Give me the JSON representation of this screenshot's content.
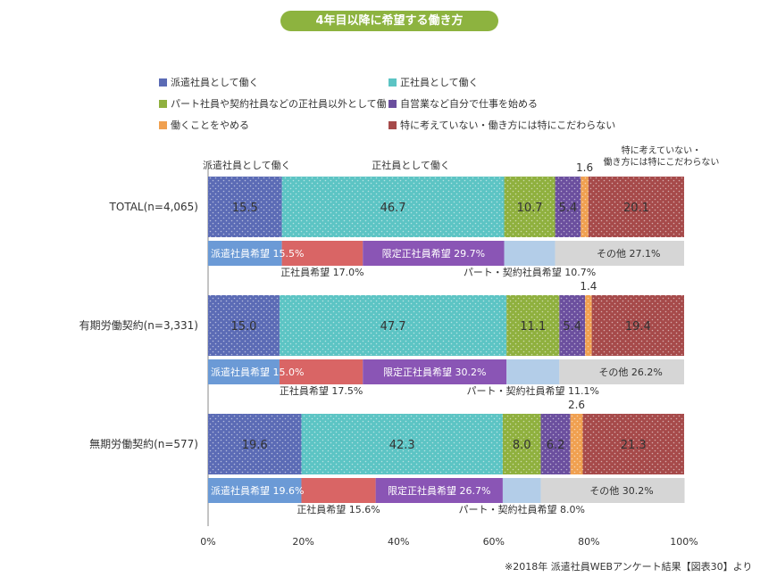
{
  "title": "4年目以降に希望する働き方",
  "source_note": "※2018年 派遣社員WEBアンケート結果【図表30】より",
  "colors": {
    "title_bg": "#8db33f",
    "haken": "#5b6bb5",
    "seishain": "#5cc4c4",
    "part": "#8fb03e",
    "jiei": "#6b4f9e",
    "yameru": "#f0a050",
    "kodawaranai": "#a64a4a",
    "sub_haken": "#6b9ad6",
    "sub_seishain": "#d96565",
    "sub_gentei": "#8a55b5",
    "sub_part": "#b3cde8",
    "sub_other": "#d6d6d6"
  },
  "legend": [
    {
      "key": "haken",
      "label": "派遣社員として働く"
    },
    {
      "key": "seishain",
      "label": "正社員として働く"
    },
    {
      "key": "part",
      "label": "パート社員や契約社員などの正社員以外として働く"
    },
    {
      "key": "jiei",
      "label": "自営業など自分で仕事を始める"
    },
    {
      "key": "yameru",
      "label": "働くことをやめる"
    },
    {
      "key": "kodawaranai",
      "label": "特に考えていない・働き方には特にこだわらない"
    }
  ],
  "annotations": {
    "haken_header": "派遣社員として働く",
    "seishain_header": "正社員として働く",
    "kodawaranai_header_line1": "特に考えていない・",
    "kodawaranai_header_line2": "働き方には特にこだわらない"
  },
  "chart_data": {
    "type": "bar",
    "orientation": "horizontal",
    "stacked": true,
    "title": "4年目以降に希望する働き方",
    "categories": [
      "TOTAL(n=4,065)",
      "有期労働契約(n=3,331)",
      "無期労働契約(n=577)"
    ],
    "series": [
      {
        "key": "haken",
        "name": "派遣社員として働く",
        "values": [
          15.5,
          15.0,
          19.6
        ]
      },
      {
        "key": "seishain",
        "name": "正社員として働く",
        "values": [
          46.7,
          47.7,
          42.3
        ]
      },
      {
        "key": "part",
        "name": "パート社員や契約社員などの正社員以外として働く",
        "values": [
          10.7,
          11.1,
          8.0
        ]
      },
      {
        "key": "jiei",
        "name": "自営業など自分で仕事を始める",
        "values": [
          5.4,
          5.4,
          6.2
        ]
      },
      {
        "key": "yameru",
        "name": "働くことをやめる",
        "values": [
          1.6,
          1.4,
          2.6
        ]
      },
      {
        "key": "kodawaranai",
        "name": "特に考えていない・働き方には特にこだわらない",
        "values": [
          20.1,
          19.4,
          21.3
        ]
      }
    ],
    "sub_series": [
      [
        {
          "key": "sub_haken",
          "label": "派遣社員希望 15.5%",
          "value": 15.5,
          "label_pos": "inside"
        },
        {
          "key": "sub_seishain",
          "label": "正社員希望 17.0%",
          "value": 17.0,
          "label_pos": "below"
        },
        {
          "key": "sub_gentei",
          "label": "限定正社員希望 29.7%",
          "value": 29.7,
          "label_pos": "inside"
        },
        {
          "key": "sub_part",
          "label": "パート・契約社員希望 10.7%",
          "value": 10.7,
          "label_pos": "below"
        },
        {
          "key": "sub_other",
          "label": "その他 27.1%",
          "value": 27.1,
          "label_pos": "inside"
        }
      ],
      [
        {
          "key": "sub_haken",
          "label": "派遣社員希望 15.0%",
          "value": 15.0,
          "label_pos": "inside"
        },
        {
          "key": "sub_seishain",
          "label": "正社員希望 17.5%",
          "value": 17.5,
          "label_pos": "below"
        },
        {
          "key": "sub_gentei",
          "label": "限定正社員希望 30.2%",
          "value": 30.2,
          "label_pos": "inside"
        },
        {
          "key": "sub_part",
          "label": "パート・契約社員希望 11.1%",
          "value": 11.1,
          "label_pos": "below"
        },
        {
          "key": "sub_other",
          "label": "その他 26.2%",
          "value": 26.2,
          "label_pos": "inside"
        }
      ],
      [
        {
          "key": "sub_haken",
          "label": "派遣社員希望 19.6%",
          "value": 19.6,
          "label_pos": "inside"
        },
        {
          "key": "sub_seishain",
          "label": "正社員希望 15.6%",
          "value": 15.6,
          "label_pos": "below"
        },
        {
          "key": "sub_gentei",
          "label": "限定正社員希望 26.7%",
          "value": 26.7,
          "label_pos": "inside"
        },
        {
          "key": "sub_part",
          "label": "パート・契約社員希望 8.0%",
          "value": 8.0,
          "label_pos": "below"
        },
        {
          "key": "sub_other",
          "label": "その他 30.2%",
          "value": 30.2,
          "label_pos": "inside"
        }
      ]
    ],
    "x_ticks": [
      "0%",
      "20%",
      "40%",
      "60%",
      "80%",
      "100%"
    ],
    "xlim": [
      0,
      100
    ]
  }
}
